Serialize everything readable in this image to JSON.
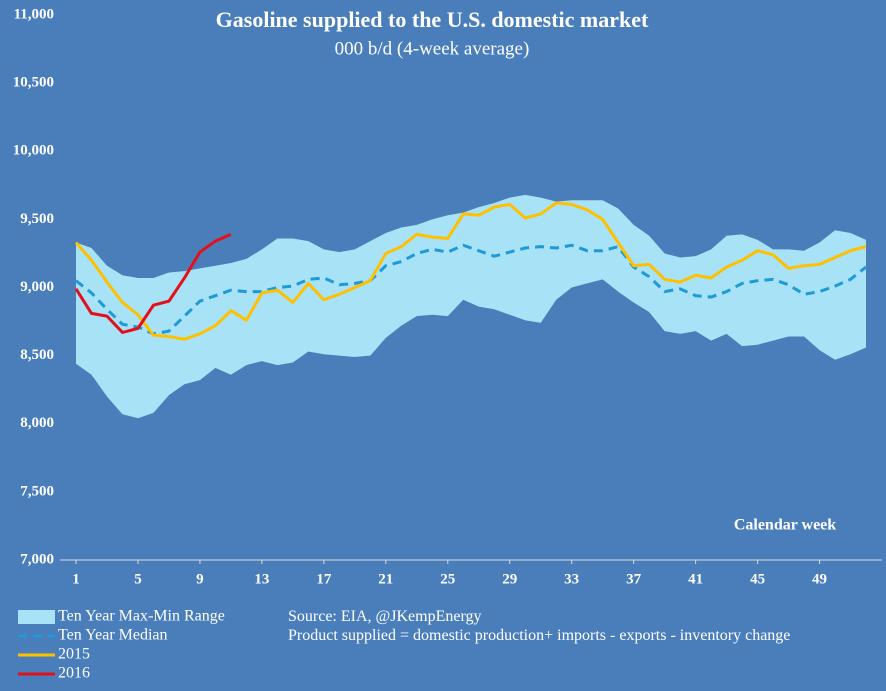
{
  "chart_data": {
    "type": "line",
    "title": "Gasoline supplied to the U.S. domestic market",
    "subtitle": "000 b/d (4-week average)",
    "x_label": "Calendar week",
    "notes": [
      "Source: EIA, @JKempEnergy",
      "Product supplied = domestic production+ imports - exports - inventory change"
    ],
    "x": [
      1,
      2,
      3,
      4,
      5,
      6,
      7,
      8,
      9,
      10,
      11,
      12,
      13,
      14,
      15,
      16,
      17,
      18,
      19,
      20,
      21,
      22,
      23,
      24,
      25,
      26,
      27,
      28,
      29,
      30,
      31,
      32,
      33,
      34,
      35,
      36,
      37,
      38,
      39,
      40,
      41,
      42,
      43,
      44,
      45,
      46,
      47,
      48,
      49,
      50,
      51,
      52
    ],
    "xlim": [
      1,
      52
    ],
    "xticks": [
      1,
      5,
      9,
      13,
      17,
      21,
      25,
      29,
      33,
      37,
      41,
      45,
      49
    ],
    "ylim": [
      7000,
      11000
    ],
    "yticks": [
      {
        "value": 7000,
        "label": "7,000"
      },
      {
        "value": 7500,
        "label": "7,500"
      },
      {
        "value": 8000,
        "label": "8,000"
      },
      {
        "value": 8500,
        "label": "8,500"
      },
      {
        "value": 9000,
        "label": "9,000"
      },
      {
        "value": 9500,
        "label": "9,500"
      },
      {
        "value": 10000,
        "label": "10,000"
      },
      {
        "value": 10500,
        "label": "10,500"
      },
      {
        "value": 11000,
        "label": "11,000"
      }
    ],
    "series": [
      {
        "name": "Ten Year Max-Min Range",
        "type": "band",
        "color": "#a8e2f6",
        "high": [
          9330,
          9290,
          9160,
          9090,
          9070,
          9070,
          9110,
          9120,
          9140,
          9160,
          9180,
          9210,
          9280,
          9360,
          9360,
          9340,
          9280,
          9260,
          9280,
          9340,
          9400,
          9440,
          9460,
          9500,
          9530,
          9550,
          9590,
          9620,
          9660,
          9680,
          9660,
          9630,
          9640,
          9640,
          9640,
          9580,
          9460,
          9380,
          9250,
          9220,
          9230,
          9280,
          9380,
          9390,
          9350,
          9280,
          9280,
          9270,
          9330,
          9420,
          9400,
          9350
        ],
        "low": [
          8440,
          8360,
          8200,
          8070,
          8040,
          8080,
          8210,
          8290,
          8320,
          8410,
          8360,
          8430,
          8460,
          8430,
          8450,
          8530,
          8510,
          8500,
          8490,
          8500,
          8630,
          8720,
          8790,
          8800,
          8790,
          8910,
          8860,
          8840,
          8800,
          8760,
          8740,
          8910,
          9000,
          9030,
          9060,
          8970,
          8890,
          8820,
          8680,
          8660,
          8680,
          8610,
          8660,
          8570,
          8580,
          8610,
          8640,
          8640,
          8540,
          8470,
          8510,
          8560
        ]
      },
      {
        "name": "Ten Year Median",
        "type": "dashed",
        "color": "#1e9ad6",
        "values": [
          9050,
          8960,
          8840,
          8730,
          8710,
          8660,
          8680,
          8790,
          8900,
          8940,
          8980,
          8970,
          8970,
          9000,
          9010,
          9060,
          9070,
          9020,
          9030,
          9050,
          9160,
          9190,
          9250,
          9280,
          9260,
          9310,
          9270,
          9230,
          9260,
          9290,
          9300,
          9290,
          9310,
          9270,
          9270,
          9300,
          9150,
          9080,
          8970,
          8990,
          8940,
          8930,
          8970,
          9030,
          9050,
          9060,
          9020,
          8950,
          8970,
          9010,
          9060,
          9150
        ]
      },
      {
        "name": "2015",
        "type": "line",
        "color": "#ffc000",
        "values": [
          9330,
          9200,
          9040,
          8890,
          8800,
          8650,
          8640,
          8620,
          8660,
          8720,
          8830,
          8760,
          8960,
          8980,
          8890,
          9030,
          8910,
          8950,
          9000,
          9050,
          9250,
          9300,
          9390,
          9370,
          9360,
          9540,
          9530,
          9590,
          9610,
          9510,
          9540,
          9620,
          9610,
          9570,
          9500,
          9330,
          9160,
          9170,
          9060,
          9040,
          9090,
          9070,
          9150,
          9200,
          9270,
          9240,
          9140,
          9160,
          9170,
          9220,
          9270,
          9300
        ]
      },
      {
        "name": "2016",
        "type": "line",
        "color": "#e3101c",
        "values": [
          8990,
          8810,
          8790,
          8670,
          8700,
          8870,
          8900,
          9070,
          9260,
          9340,
          9390,
          null,
          null,
          null,
          null,
          null,
          null,
          null,
          null,
          null,
          null,
          null,
          null,
          null,
          null,
          null,
          null,
          null,
          null,
          null,
          null,
          null,
          null,
          null,
          null,
          null,
          null,
          null,
          null,
          null,
          null,
          null,
          null,
          null,
          null,
          null,
          null,
          null,
          null,
          null,
          null,
          null
        ]
      }
    ]
  }
}
